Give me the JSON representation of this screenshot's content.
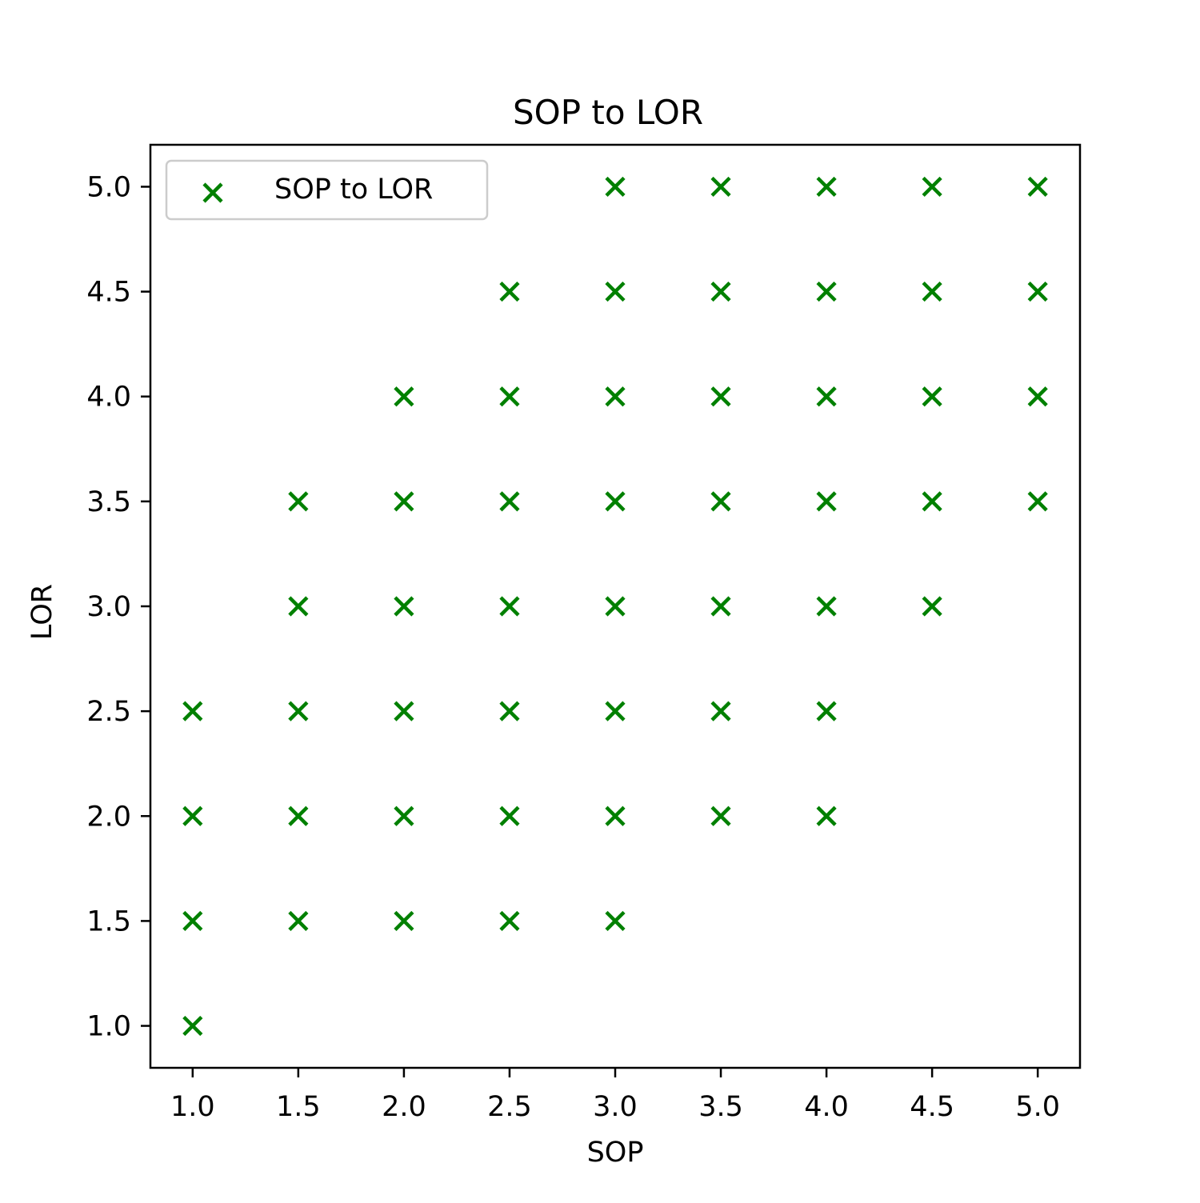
{
  "chart_data": {
    "type": "scatter",
    "title": "SOP to LOR",
    "xlabel": "SOP",
    "ylabel": "LOR",
    "xlim": [
      0.8,
      5.2
    ],
    "ylim": [
      0.8,
      5.2
    ],
    "xticks": [
      "1.0",
      "1.5",
      "2.0",
      "2.5",
      "3.0",
      "3.5",
      "4.0",
      "4.5",
      "5.0"
    ],
    "yticks": [
      "1.0",
      "1.5",
      "2.0",
      "2.5",
      "3.0",
      "3.5",
      "4.0",
      "4.5",
      "5.0"
    ],
    "grid": false,
    "legend_position": "upper-left",
    "marker": "x",
    "series": [
      {
        "name": "SOP to LOR",
        "color": "#008000",
        "points": [
          [
            1.0,
            1.0
          ],
          [
            1.0,
            1.5
          ],
          [
            1.0,
            2.0
          ],
          [
            1.0,
            2.5
          ],
          [
            1.5,
            1.5
          ],
          [
            1.5,
            2.0
          ],
          [
            1.5,
            2.5
          ],
          [
            1.5,
            3.0
          ],
          [
            1.5,
            3.5
          ],
          [
            2.0,
            1.5
          ],
          [
            2.0,
            2.0
          ],
          [
            2.0,
            2.5
          ],
          [
            2.0,
            3.0
          ],
          [
            2.0,
            3.5
          ],
          [
            2.0,
            4.0
          ],
          [
            2.5,
            1.5
          ],
          [
            2.5,
            2.0
          ],
          [
            2.5,
            2.5
          ],
          [
            2.5,
            3.0
          ],
          [
            2.5,
            3.5
          ],
          [
            2.5,
            4.0
          ],
          [
            2.5,
            4.5
          ],
          [
            3.0,
            1.5
          ],
          [
            3.0,
            2.0
          ],
          [
            3.0,
            2.5
          ],
          [
            3.0,
            3.0
          ],
          [
            3.0,
            3.5
          ],
          [
            3.0,
            4.0
          ],
          [
            3.0,
            4.5
          ],
          [
            3.0,
            5.0
          ],
          [
            3.5,
            2.0
          ],
          [
            3.5,
            2.5
          ],
          [
            3.5,
            3.0
          ],
          [
            3.5,
            3.5
          ],
          [
            3.5,
            4.0
          ],
          [
            3.5,
            4.5
          ],
          [
            3.5,
            5.0
          ],
          [
            4.0,
            2.0
          ],
          [
            4.0,
            2.5
          ],
          [
            4.0,
            3.0
          ],
          [
            4.0,
            3.5
          ],
          [
            4.0,
            4.0
          ],
          [
            4.0,
            4.5
          ],
          [
            4.0,
            5.0
          ],
          [
            4.5,
            3.0
          ],
          [
            4.5,
            3.5
          ],
          [
            4.5,
            4.0
          ],
          [
            4.5,
            4.5
          ],
          [
            4.5,
            5.0
          ],
          [
            5.0,
            3.5
          ],
          [
            5.0,
            4.0
          ],
          [
            5.0,
            4.5
          ],
          [
            5.0,
            5.0
          ]
        ]
      }
    ]
  }
}
